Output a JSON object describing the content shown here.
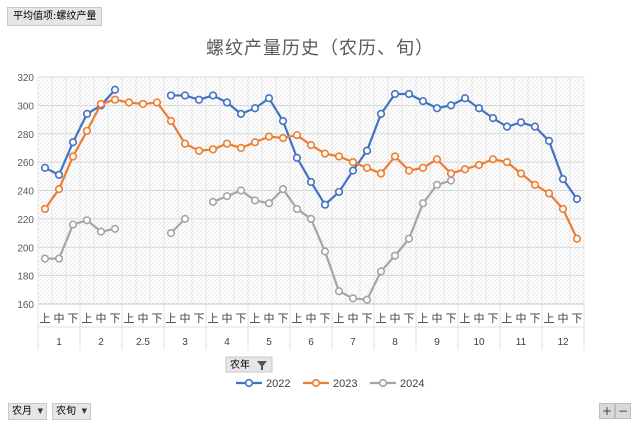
{
  "field_tag": "平均值项:螺纹产量",
  "title": "螺纹产量历史（农历、旬）",
  "series_filter": {
    "label": "农年",
    "icon": "filter-dropdown-icon"
  },
  "row_filters": [
    {
      "label": "农月",
      "icon": "dropdown-arrow-icon"
    },
    {
      "label": "农旬",
      "icon": "dropdown-arrow-icon"
    }
  ],
  "zoom": {
    "expand": "+",
    "collapse": "−"
  },
  "chart_data": {
    "type": "line",
    "title": "螺纹产量历史（农历、旬）",
    "ylim": [
      160,
      320
    ],
    "yticks": [
      160,
      180,
      200,
      220,
      240,
      260,
      280,
      300,
      320
    ],
    "grid": true,
    "legend_position": "bottom",
    "groups": [
      {
        "label": "1",
        "subs": [
          "上",
          "中",
          "下"
        ]
      },
      {
        "label": "2",
        "subs": [
          "上",
          "中",
          "下"
        ]
      },
      {
        "label": "2.5",
        "subs": [
          "上",
          "中",
          "下"
        ]
      },
      {
        "label": "3",
        "subs": [
          "上",
          "中",
          "下"
        ]
      },
      {
        "label": "4",
        "subs": [
          "上",
          "中",
          "下"
        ]
      },
      {
        "label": "5",
        "subs": [
          "上",
          "中",
          "下"
        ]
      },
      {
        "label": "6",
        "subs": [
          "上",
          "中",
          "下"
        ]
      },
      {
        "label": "7",
        "subs": [
          "上",
          "中",
          "下"
        ]
      },
      {
        "label": "8",
        "subs": [
          "上",
          "中",
          "下"
        ]
      },
      {
        "label": "9",
        "subs": [
          "上",
          "中",
          "下"
        ]
      },
      {
        "label": "10",
        "subs": [
          "上",
          "中",
          "下"
        ]
      },
      {
        "label": "11",
        "subs": [
          "上",
          "中",
          "下"
        ]
      },
      {
        "label": "12",
        "subs": [
          "上",
          "中",
          "下"
        ]
      }
    ],
    "series": [
      {
        "name": "2022",
        "color": "#4472c4",
        "values": [
          256,
          251,
          274,
          294,
          300,
          311,
          null,
          null,
          null,
          307,
          307,
          304,
          307,
          302,
          294,
          298,
          305,
          289,
          263,
          246,
          230,
          239,
          254,
          268,
          294,
          308,
          308,
          303,
          298,
          300,
          305,
          298,
          291,
          285,
          288,
          285,
          275,
          248,
          234
        ]
      },
      {
        "name": "2023",
        "color": "#ed7d31",
        "values": [
          227,
          241,
          264,
          282,
          301,
          304,
          302,
          301,
          302,
          289,
          273,
          268,
          269,
          273,
          270,
          274,
          278,
          277,
          279,
          272,
          266,
          264,
          260,
          256,
          252,
          264,
          254,
          256,
          262,
          252,
          255,
          258,
          262,
          260,
          252,
          244,
          238,
          227,
          206
        ]
      },
      {
        "name": "2024",
        "color": "#a5a5a5",
        "values": [
          192,
          192,
          216,
          219,
          211,
          213,
          null,
          null,
          null,
          210,
          220,
          null,
          232,
          236,
          240,
          233,
          231,
          241,
          227,
          220,
          197,
          169,
          164,
          163,
          183,
          194,
          206,
          231,
          244,
          247,
          null,
          null,
          null,
          null,
          null,
          null,
          null,
          null,
          null
        ]
      }
    ]
  }
}
